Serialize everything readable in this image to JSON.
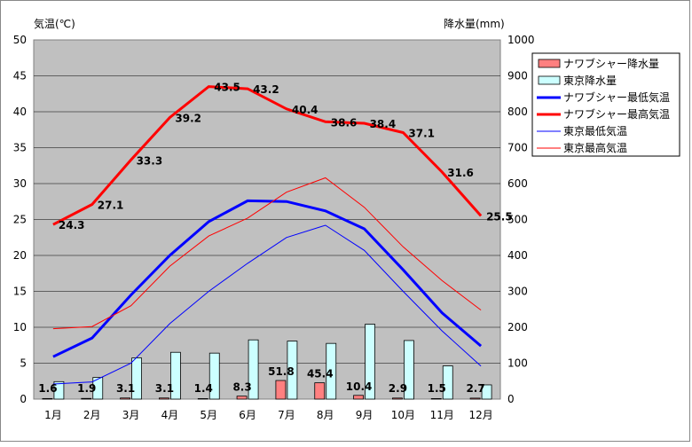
{
  "chart_data": {
    "type": "bar+line",
    "title": "",
    "left_axis_label": "気温(℃)",
    "right_axis_label": "降水量(mm)",
    "categories": [
      "1月",
      "2月",
      "3月",
      "4月",
      "5月",
      "6月",
      "7月",
      "8月",
      "9月",
      "10月",
      "11月",
      "12月"
    ],
    "left_ylim": [
      0,
      50
    ],
    "left_ticks": [
      0,
      5,
      10,
      15,
      20,
      25,
      30,
      35,
      40,
      45,
      50
    ],
    "right_ylim": [
      0,
      1000
    ],
    "right_ticks": [
      0,
      100,
      200,
      300,
      400,
      500,
      600,
      700,
      800,
      900,
      1000
    ],
    "grid": "horizontal",
    "legend_position": "right",
    "bar_series": [
      {
        "name": "ナワブシャー降水量",
        "color": "#ff8080",
        "values": [
          1.6,
          1.9,
          3.1,
          3.1,
          1.4,
          8.3,
          51.8,
          45.4,
          10.4,
          2.9,
          1.5,
          2.7
        ],
        "data_labels": [
          "1.6",
          "1.9",
          "3.1",
          "3.1",
          "1.4",
          "8.3",
          "51.8",
          "45.4",
          "10.4",
          "2.9",
          "1.5",
          "2.7"
        ]
      },
      {
        "name": "東京降水量",
        "color": "#ccffff",
        "values": [
          48.6,
          60.2,
          114.5,
          130.3,
          128.0,
          164.9,
          161.5,
          155.1,
          208.5,
          163.1,
          92.5,
          39.6
        ]
      }
    ],
    "line_series": [
      {
        "name": "ナワブシャー最低気温",
        "color": "#0000ff",
        "width": "thick",
        "values": [
          5.9,
          8.5,
          14.5,
          20.0,
          24.7,
          27.6,
          27.5,
          26.2,
          23.7,
          18.0,
          12.0,
          7.4
        ]
      },
      {
        "name": "ナワブシャー最高気温",
        "color": "#ff0000",
        "width": "thick",
        "values": [
          24.3,
          27.1,
          33.3,
          39.2,
          43.5,
          43.2,
          40.4,
          38.6,
          38.4,
          37.1,
          31.6,
          25.5
        ],
        "data_labels": [
          "24.3",
          "27.1",
          "33.3",
          "39.2",
          "43.5",
          "43.2",
          "40.4",
          "38.6",
          "38.4",
          "37.1",
          "31.6",
          "25.5"
        ]
      },
      {
        "name": "東京最低気温",
        "color": "#0000ff",
        "width": "thin",
        "values": [
          2.1,
          2.4,
          5.0,
          10.5,
          15.0,
          18.9,
          22.5,
          24.2,
          20.7,
          15.0,
          9.5,
          4.6
        ]
      },
      {
        "name": "東京最高気温",
        "color": "#ff0000",
        "width": "thin",
        "values": [
          9.8,
          10.1,
          13.0,
          18.5,
          22.7,
          25.2,
          28.8,
          30.8,
          26.7,
          21.2,
          16.5,
          12.4
        ]
      }
    ]
  }
}
